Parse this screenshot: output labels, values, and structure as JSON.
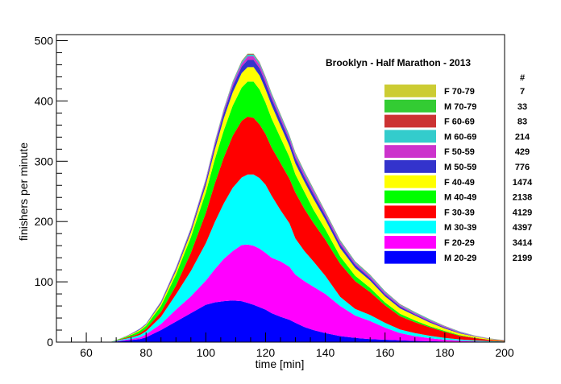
{
  "chart_data": {
    "type": "area",
    "stacked": true,
    "title": "Brooklyn - Half Marathon - 2013",
    "xlabel": "time [min]",
    "ylabel": "finishers per minute",
    "xlim": [
      50,
      200
    ],
    "ylim": [
      0,
      510
    ],
    "xticks": [
      60,
      80,
      100,
      120,
      140,
      160,
      180,
      200
    ],
    "yticks": [
      0,
      100,
      200,
      300,
      400,
      500
    ],
    "count_header": "#",
    "legend_position": "right",
    "x": [
      68,
      70,
      72,
      74,
      76,
      78,
      80,
      85,
      90,
      95,
      100,
      103,
      106,
      109,
      112,
      114,
      116,
      118,
      120,
      122,
      125,
      128,
      130,
      133,
      136,
      140,
      145,
      150,
      155,
      160,
      165,
      170,
      175,
      180,
      185,
      190,
      195,
      200
    ],
    "series": [
      {
        "name": "M 20-29",
        "label": "M 20-29",
        "count": "2199",
        "color": "#0000ff",
        "values": [
          0,
          1,
          2,
          3,
          4,
          5,
          8,
          20,
          34,
          48,
          62,
          66,
          68,
          69,
          68,
          65,
          62,
          58,
          54,
          48,
          42,
          37,
          32,
          25,
          20,
          15,
          10,
          7,
          5,
          4,
          3,
          2,
          1.5,
          1,
          0.5,
          0.3,
          0.2,
          0.1
        ]
      },
      {
        "name": "F 20-29",
        "label": "F 20-29",
        "count": "3414",
        "color": "#ff00ff",
        "values": [
          0,
          0.5,
          1,
          1.5,
          2,
          3,
          5,
          10,
          20,
          28,
          40,
          55,
          70,
          82,
          93,
          97,
          98,
          97,
          94,
          92,
          92,
          88,
          80,
          76,
          72,
          65,
          50,
          37,
          30,
          20,
          12,
          8,
          5,
          3,
          2,
          1,
          0.5,
          0.3
        ]
      },
      {
        "name": "M 30-39",
        "label": "M 30-39",
        "count": "4397",
        "color": "#00ffff",
        "values": [
          0,
          1,
          1.5,
          2,
          3,
          4,
          5,
          12,
          25,
          42,
          62,
          78,
          92,
          105,
          112,
          116,
          118,
          117,
          113,
          103,
          85,
          72,
          60,
          50,
          42,
          30,
          15,
          11,
          10,
          8,
          6,
          5,
          4,
          3,
          2,
          1.5,
          1,
          0.5
        ]
      },
      {
        "name": "F 30-39",
        "label": "F 30-39",
        "count": "4129",
        "color": "#ff0000",
        "values": [
          0,
          0.5,
          1,
          1.5,
          2,
          3,
          4,
          8,
          15,
          30,
          50,
          64,
          76,
          86,
          94,
          96,
          94,
          89,
          84,
          80,
          78,
          74,
          76,
          70,
          64,
          60,
          55,
          46,
          38,
          29,
          22,
          18,
          14,
          10,
          6,
          4,
          2,
          1
        ]
      },
      {
        "name": "M 40-49",
        "label": "M 40-49",
        "count": "2138",
        "color": "#00ff00",
        "values": [
          0,
          0.5,
          1,
          2,
          3,
          4,
          5,
          10,
          18,
          26,
          34,
          40,
          45,
          50,
          55,
          58,
          60,
          58,
          52,
          48,
          42,
          36,
          30,
          28,
          22,
          17,
          12,
          9,
          7,
          5,
          4,
          3,
          2,
          1.5,
          1,
          0.5,
          0.3,
          0.2
        ]
      },
      {
        "name": "F 40-49",
        "label": "F 40-49",
        "count": "1474",
        "color": "#ffff00",
        "values": [
          0,
          0,
          0.5,
          1,
          1.5,
          2,
          2,
          4,
          6,
          8,
          12,
          16,
          20,
          22,
          24,
          24,
          24,
          23,
          22,
          22,
          20,
          18,
          18,
          17,
          18,
          16,
          14,
          13,
          12,
          10,
          9,
          8,
          6,
          4,
          3,
          2,
          1,
          0.5
        ]
      },
      {
        "name": "M 50-59",
        "label": "M 50-59",
        "count": "776",
        "color": "#3333cc",
        "values": [
          0,
          0,
          0.3,
          0.5,
          1,
          1,
          1,
          2,
          3,
          4,
          6,
          7,
          9,
          10,
          11,
          12,
          12,
          12,
          11,
          11,
          10,
          9,
          9,
          8,
          8,
          7,
          6,
          5,
          4,
          3,
          3,
          2,
          2,
          1.5,
          1,
          0.5,
          0.3,
          0.2
        ]
      },
      {
        "name": "F 50-59",
        "label": "F 50-59",
        "count": "429",
        "color": "#cc33cc",
        "values": [
          0,
          0,
          0,
          0.2,
          0.3,
          0.5,
          0.5,
          1,
          1.5,
          2,
          3,
          4,
          4,
          5,
          5,
          6,
          6,
          6,
          6,
          5,
          5,
          5,
          5,
          5,
          5,
          4,
          4,
          3,
          3,
          3,
          2,
          2,
          2,
          1.5,
          1,
          0.5,
          0.3,
          0.2
        ]
      },
      {
        "name": "M 60-69",
        "label": "M 60-69",
        "count": "214",
        "color": "#33cccc",
        "values": [
          0,
          0,
          0,
          0,
          0.2,
          0.3,
          0.3,
          0.5,
          1,
          1,
          1.5,
          2,
          2,
          2.5,
          3,
          3,
          3,
          3,
          3,
          3,
          3,
          3,
          3,
          3,
          2.5,
          2,
          2,
          2,
          2,
          2,
          1.5,
          1.5,
          1,
          1,
          1,
          0.5,
          0.3,
          0.2
        ]
      },
      {
        "name": "F 60-69",
        "label": "F 60-69",
        "count": "83",
        "color": "#cc3333",
        "values": [
          0,
          0,
          0,
          0,
          0,
          0,
          0.1,
          0.2,
          0.3,
          0.4,
          0.5,
          0.6,
          0.7,
          0.8,
          1,
          1,
          1,
          1,
          1,
          1,
          1,
          1,
          1,
          1,
          1,
          0.8,
          0.8,
          0.7,
          0.6,
          0.5,
          0.5,
          0.4,
          0.3,
          0.3,
          0.2,
          0.2,
          0.1,
          0.1
        ]
      },
      {
        "name": "M 70-79",
        "label": "M 70-79",
        "count": "33",
        "color": "#33cc33",
        "values": [
          0,
          0,
          0,
          0,
          0,
          0,
          0,
          0.1,
          0.1,
          0.2,
          0.2,
          0.3,
          0.3,
          0.3,
          0.4,
          0.4,
          0.4,
          0.4,
          0.4,
          0.4,
          0.4,
          0.4,
          0.4,
          0.4,
          0.4,
          0.3,
          0.3,
          0.3,
          0.3,
          0.2,
          0.2,
          0.2,
          0.2,
          0.1,
          0.1,
          0.1,
          0.1,
          0
        ]
      },
      {
        "name": "F 70-79",
        "label": "F 70-79",
        "count": "7",
        "color": "#cccc33",
        "values": [
          0,
          0,
          0,
          0,
          0,
          0,
          0,
          0,
          0,
          0,
          0,
          0.1,
          0.1,
          0.1,
          0.1,
          0.1,
          0.1,
          0.1,
          0.1,
          0.1,
          0.1,
          0.1,
          0.1,
          0.1,
          0.1,
          0.1,
          0.1,
          0.1,
          0.1,
          0,
          0,
          0,
          0,
          0,
          0,
          0,
          0,
          0
        ]
      }
    ]
  }
}
